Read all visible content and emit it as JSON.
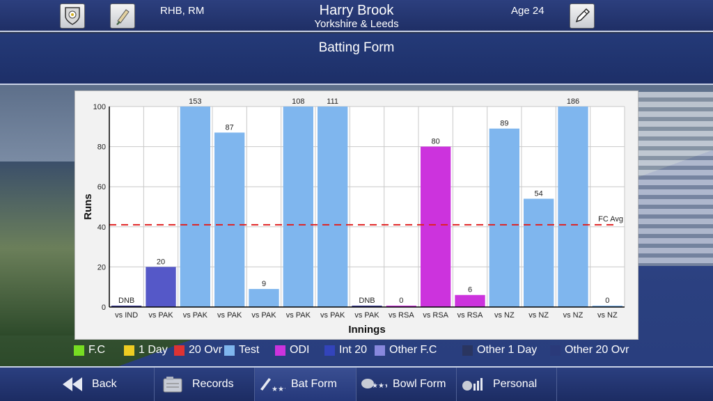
{
  "header": {
    "role": "RHB, RM",
    "player_name": "Harry Brook",
    "team": "Yorkshire & Leeds",
    "age": "Age 24"
  },
  "title": "Batting Form",
  "colors": {
    "test": "#7fb6ee",
    "odi": "#cc33dd",
    "int20": "#5558c8",
    "dnb_bar": "#3a3a9a",
    "fc_avg_line": "#e02020"
  },
  "chart_data": {
    "type": "bar",
    "title": "",
    "xlabel": "Innings",
    "ylabel": "Runs",
    "ylim": [
      0,
      100
    ],
    "y_ticks": [
      0,
      20,
      40,
      60,
      80,
      100
    ],
    "grid": true,
    "categories": [
      "vs IND",
      "vs PAK",
      "vs PAK",
      "vs PAK",
      "vs PAK",
      "vs PAK",
      "vs PAK",
      "vs PAK",
      "vs RSA",
      "vs RSA",
      "vs RSA",
      "vs NZ",
      "vs NZ",
      "vs NZ",
      "vs NZ"
    ],
    "values": [
      0,
      20,
      153,
      87,
      9,
      108,
      111,
      0,
      0,
      80,
      6,
      89,
      54,
      186,
      0
    ],
    "value_labels": [
      "DNB",
      "20",
      "153",
      "87",
      "9",
      "108",
      "111",
      "DNB",
      "0",
      "80",
      "6",
      "89",
      "54",
      "186",
      "0"
    ],
    "formats": [
      "Int 20",
      "Int 20",
      "Test",
      "Test",
      "Test",
      "Test",
      "Test",
      "Test",
      "ODI",
      "ODI",
      "ODI",
      "Test",
      "Test",
      "Test",
      "Test"
    ],
    "reference_line": {
      "label": "FC Avg",
      "value": 41
    }
  },
  "legend": [
    {
      "label": "F.C",
      "color": "#77dd22"
    },
    {
      "label": "1 Day",
      "color": "#eecc22"
    },
    {
      "label": "20 Ovr",
      "color": "#dd3333"
    },
    {
      "label": "Test",
      "color": "#7fb6ee"
    },
    {
      "label": "ODI",
      "color": "#cc33dd"
    },
    {
      "label": "Int 20",
      "color": "#3344bb"
    },
    {
      "label": "Other F.C",
      "color": "#8888dd"
    },
    {
      "label": "Other 1 Day",
      "color": "#2a3560"
    },
    {
      "label": "Other 20 Ovr",
      "color": "#2a3a7a"
    }
  ],
  "nav": [
    {
      "label": "Back",
      "icon": "back-arrow-icon"
    },
    {
      "label": "Records",
      "icon": "records-icon"
    },
    {
      "label": "Bat Form",
      "icon": "bat-icon"
    },
    {
      "label": "Bowl Form",
      "icon": "ball-icon"
    },
    {
      "label": "Personal",
      "icon": "personal-stats-icon"
    }
  ]
}
